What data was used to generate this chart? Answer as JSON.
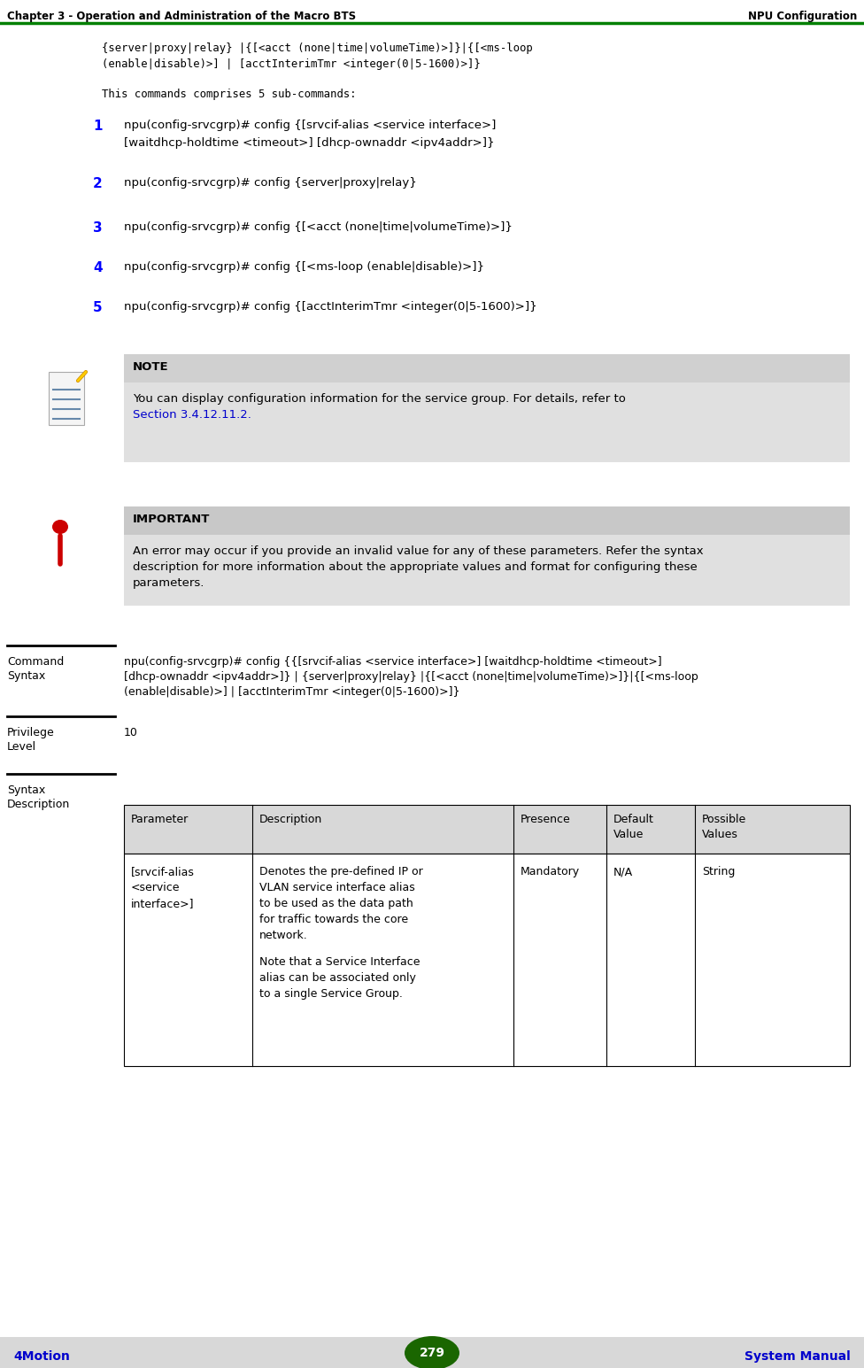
{
  "header_left": "Chapter 3 - Operation and Administration of the Macro BTS",
  "header_right": "NPU Configuration",
  "header_line_color": "#008000",
  "footer_left": "4Motion",
  "footer_right": "System Manual",
  "footer_page": "279",
  "footer_bg": "#d8d8d8",
  "footer_text_color": "#0000cc",
  "body_bg": "#ffffff",
  "blue_number_color": "#0000ff",
  "code_line1": "{server|proxy|relay} |{[<acct (none|time|volumeTime)>]}|{[<ms-loop",
  "code_line2": "(enable|disable)>] | [acctInterimTmr <integer(0|5-1600)>]}",
  "subcommand_intro": "This commands comprises 5 sub-commands:",
  "subcommands": [
    {
      "num": "1",
      "lines": [
        "npu(config-srvcgrp)# config {[srvcif-alias <service interface>]",
        "[waitdhcp-holdtime <timeout>] [dhcp-ownaddr <ipv4addr>]}"
      ]
    },
    {
      "num": "2",
      "lines": [
        "npu(config-srvcgrp)# config {server|proxy|relay}"
      ]
    },
    {
      "num": "3",
      "lines": [
        "npu(config-srvcgrp)# config {[<acct (none|time|volumeTime)>]}"
      ]
    },
    {
      "num": "4",
      "lines": [
        "npu(config-srvcgrp)# config {[<ms-loop (enable|disable)>]}"
      ]
    },
    {
      "num": "5",
      "lines": [
        "npu(config-srvcgrp)# config {[acctInterimTmr <integer(0|5-1600)>]}"
      ]
    }
  ],
  "note_bg": "#e0e0e0",
  "note_title_bg": "#d0d0d0",
  "note_title": "NOTE",
  "note_body": "You can display configuration information for the service group. For details, refer to",
  "note_link": "Section 3.4.12.11.2.",
  "important_bg": "#e0e0e0",
  "important_title_bg": "#c8c8c8",
  "important_title": "IMPORTANT",
  "important_lines": [
    "An error may occur if you provide an invalid value for any of these parameters. Refer the syntax",
    "description for more information about the appropriate values and format for configuring these",
    "parameters."
  ],
  "sep_color": "#000000",
  "command_syntax_label_line1": "Command",
  "command_syntax_label_line2": "Syntax",
  "command_syntax_lines": [
    "npu(config-srvcgrp)# config {{[srvcif-alias <service interface>] [waitdhcp-holdtime <timeout>]",
    "[dhcp-ownaddr <ipv4addr>]} | {server|proxy|relay} |{[<acct (none|time|volumeTime)>]}|{[<ms-loop",
    "(enable|disable)>] | [acctInterimTmr <integer(0|5-1600)>]}"
  ],
  "privilege_label_line1": "Privilege",
  "privilege_label_line2": "Level",
  "privilege_value": "10",
  "syntax_desc_label_line1": "Syntax",
  "syntax_desc_label_line2": "Description",
  "table_headers": [
    "Parameter",
    "Description",
    "Presence",
    "Default\nValue",
    "Possible\nValues"
  ],
  "table_row1_col1_lines": [
    "[srvcif-alias",
    "<service",
    "interface>]"
  ],
  "table_row1_col2_lines": [
    "Denotes the pre-defined IP or",
    "VLAN service interface alias",
    "to be used as the data path",
    "for traffic towards the core",
    "network.",
    "",
    "Note that a Service Interface",
    "alias can be associated only",
    "to a single Service Group."
  ],
  "table_row1_col3": "Mandatory",
  "table_row1_col4": "N/A",
  "table_row1_col5": "String",
  "table_header_bg": "#d8d8d8",
  "table_border_color": "#000000",
  "icon_red": "#cc0000",
  "icon_dark_red": "#8b0000"
}
